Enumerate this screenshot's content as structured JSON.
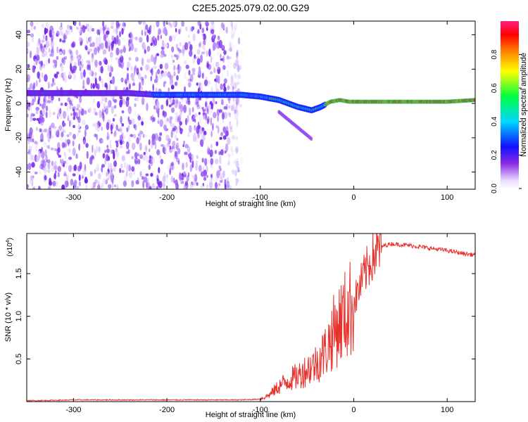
{
  "title": "C2E5.2025.079.02.00.G29",
  "chart_data": [
    {
      "type": "heatmap",
      "xlabel": "Height of straight line (km)",
      "ylabel": "Frequency (Hz)",
      "xlim": [
        -350,
        130
      ],
      "ylim": [
        -50,
        48
      ],
      "xticks": [
        -300,
        -200,
        -100,
        0,
        100
      ],
      "yticks": [
        -40,
        -20,
        0,
        20,
        40
      ],
      "colorbar": {
        "label": "Normalized spectral amplitude",
        "range": [
          0,
          1
        ],
        "ticks": [
          "0.0",
          "0.2",
          "0.4",
          "0.6",
          "0.8"
        ]
      },
      "ridge": {
        "x": [
          -350,
          -300,
          -270,
          -240,
          -210,
          -180,
          -150,
          -120,
          -100,
          -80,
          -60,
          -45,
          -35,
          -25,
          -15,
          -5,
          0,
          20,
          60,
          100,
          130
        ],
        "y": [
          6,
          6,
          6,
          6,
          5,
          5,
          5,
          5,
          4,
          2,
          -2,
          -4,
          -2,
          1,
          2,
          1,
          1,
          1,
          1,
          1,
          2
        ]
      },
      "grid": false
    },
    {
      "type": "line",
      "xlabel": "Height of straight line (km)",
      "ylabel": "SNR (10 * v/v)",
      "scale_label": "(x10",
      "scale_exponent": "4",
      "xlim": [
        -350,
        130
      ],
      "ylim": [
        0,
        1.97
      ],
      "xticks": [
        -300,
        -200,
        -100,
        0,
        100
      ],
      "yticks": [
        "0.5",
        "1.0",
        "1.5"
      ],
      "series": [
        {
          "color": "#e8322d",
          "x": [
            -350,
            -300,
            -250,
            -200,
            -150,
            -120,
            -100,
            -90,
            -80,
            -70,
            -60,
            -50,
            -40,
            -30,
            -20,
            -10,
            0,
            10,
            20,
            30,
            40,
            50,
            60,
            80,
            100,
            120,
            130
          ],
          "y": [
            0.01,
            0.02,
            0.02,
            0.02,
            0.02,
            0.02,
            0.03,
            0.08,
            0.18,
            0.25,
            0.3,
            0.38,
            0.45,
            0.6,
            0.85,
            1.0,
            1.15,
            1.45,
            1.7,
            1.82,
            1.85,
            1.84,
            1.83,
            1.8,
            1.77,
            1.73,
            1.72
          ]
        }
      ],
      "grid": false
    }
  ]
}
